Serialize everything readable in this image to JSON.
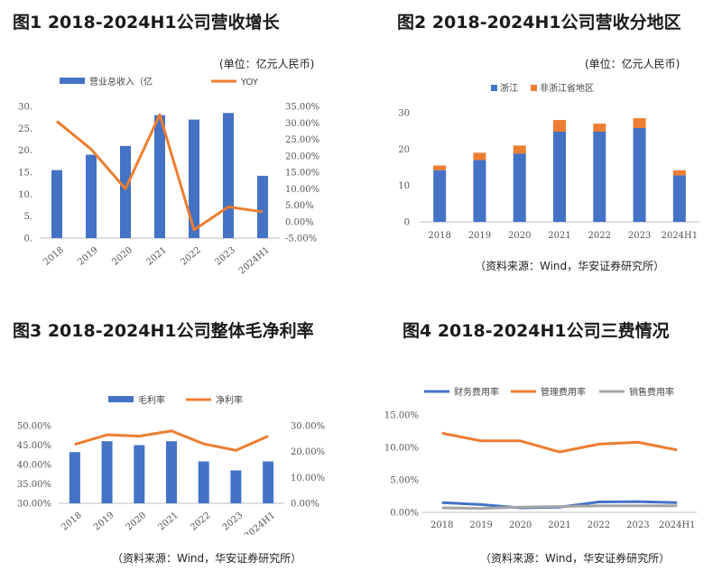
{
  "panels": [
    {
      "title": "图1  2018-2024H1公司营收增长",
      "unit": "(单位：亿元人民币)",
      "source": ""
    },
    {
      "title": "图2  2018-2024H1公司营收分地区",
      "unit": "(单位：亿元人民币)",
      "source": "（资料来源：Wind，华安证券研究所）"
    },
    {
      "title": "图3  2018-2024H1公司整体毛净利率",
      "unit": "",
      "source": "（资料来源：Wind，华安证券研究所）"
    },
    {
      "title": "图4  2018-2024H1公司三费情况",
      "unit": "",
      "source": "（资料来源：Wind，华安证券研究所）"
    }
  ],
  "colors": {
    "blue": "#4472c4",
    "orange": "#ed7d31",
    "gray": "#a5a5a5",
    "axis": "#bfbfbf"
  },
  "chart_data": [
    {
      "type": "bar+line",
      "categories": [
        "2018",
        "2019",
        "2020",
        "2021",
        "2022",
        "2023",
        "2024H1"
      ],
      "series": [
        {
          "name": "营业总收入（亿",
          "type": "bar",
          "axis": "left",
          "values": [
            15.5,
            19,
            21,
            28,
            27,
            28.5,
            14.2
          ]
        },
        {
          "name": "YOY",
          "type": "line",
          "axis": "right",
          "values": [
            30.5,
            22.0,
            10.0,
            32.5,
            -2.5,
            4.5,
            3.0
          ]
        }
      ],
      "y_left": {
        "ylim": [
          0,
          30
        ],
        "ticks": [
          "0.",
          "5.",
          "10.",
          "15.",
          "20.",
          "25.",
          "30."
        ]
      },
      "y_right": {
        "ylim": [
          -5,
          35
        ],
        "ticks": [
          "-5.00%",
          "0.00%",
          "5.00%",
          "10.00%",
          "15.00%",
          "20.00%",
          "25.00%",
          "30.00%",
          "35.00%"
        ]
      },
      "legend": "top"
    },
    {
      "type": "stacked-bar",
      "categories": [
        "2018",
        "2019",
        "2020",
        "2021",
        "2022",
        "2023",
        "2024H1"
      ],
      "series": [
        {
          "name": "浙江",
          "values": [
            14.2,
            17.0,
            18.8,
            24.8,
            24.8,
            25.8,
            12.8
          ]
        },
        {
          "name": "非浙江省地区",
          "values": [
            1.3,
            2.0,
            2.2,
            3.2,
            2.2,
            2.7,
            1.4
          ]
        }
      ],
      "ylim": [
        0,
        30
      ],
      "yticks": [
        "0",
        "10",
        "20",
        "30"
      ],
      "legend": "top"
    },
    {
      "type": "bar+line",
      "categories": [
        "2018",
        "2019",
        "2020",
        "2021",
        "2022",
        "2023",
        "2024H1"
      ],
      "series": [
        {
          "name": "毛利率",
          "type": "bar",
          "axis": "left",
          "values": [
            43.2,
            46.0,
            45.0,
            46.0,
            40.8,
            38.5,
            40.8
          ]
        },
        {
          "name": "净利率",
          "type": "line",
          "axis": "right",
          "values": [
            22.8,
            26.5,
            26.0,
            28.0,
            23.0,
            20.5,
            26.0
          ]
        }
      ],
      "y_left": {
        "ylim": [
          30,
          50
        ],
        "ticks": [
          "30.00%",
          "35.00%",
          "40.00%",
          "45.00%",
          "50.00%"
        ]
      },
      "y_right": {
        "ylim": [
          0,
          30
        ],
        "ticks": [
          "0.00%",
          "10.00%",
          "20.00%",
          "30.00%"
        ]
      },
      "legend": "top"
    },
    {
      "type": "line",
      "categories": [
        "2018",
        "2019",
        "2020",
        "2021",
        "2022",
        "2023",
        "2024H1"
      ],
      "series": [
        {
          "name": "财务费用率",
          "values": [
            1.5,
            1.2,
            0.7,
            0.8,
            1.6,
            1.65,
            1.5
          ]
        },
        {
          "name": "管理费用率",
          "values": [
            12.2,
            11.0,
            11.0,
            9.3,
            10.5,
            10.8,
            9.6
          ]
        },
        {
          "name": "销售费用率",
          "values": [
            0.7,
            0.6,
            0.8,
            0.9,
            1.0,
            1.0,
            1.0
          ]
        }
      ],
      "ylim": [
        0,
        15
      ],
      "yticks": [
        "0.00%",
        "5.00%",
        "10.00%",
        "15.00%"
      ],
      "legend": "top"
    }
  ]
}
